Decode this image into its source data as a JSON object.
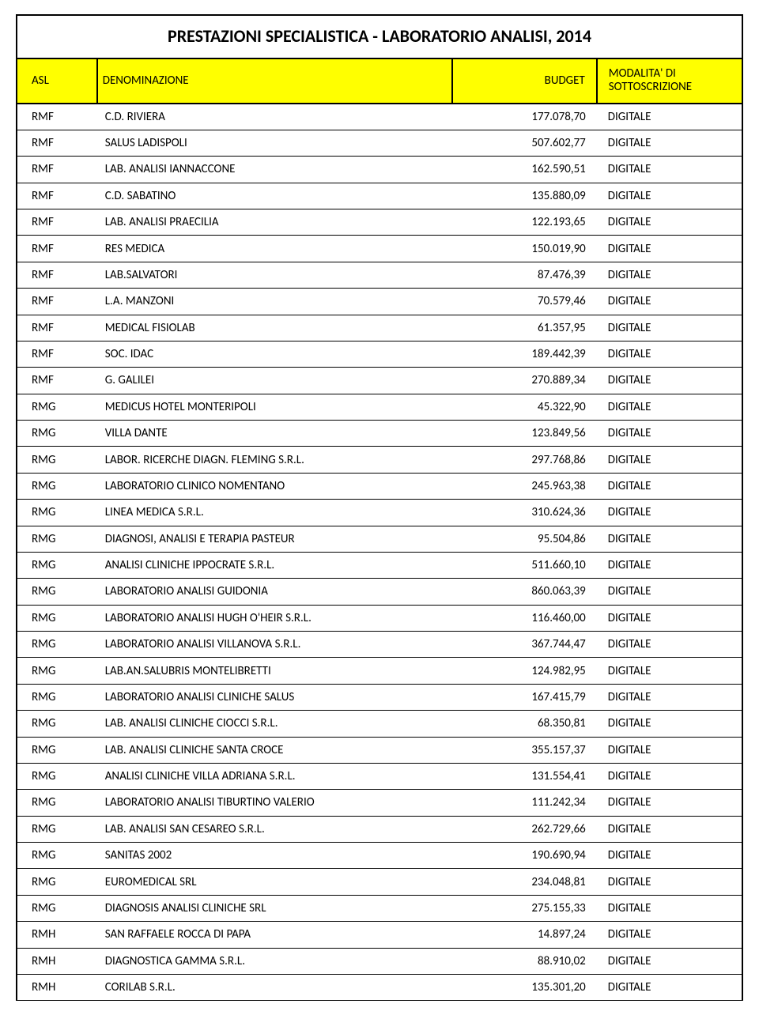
{
  "title": "PRESTAZIONI SPECIALISTICA - LABORATORIO ANALISI, 2014",
  "colors": {
    "header_bg": "#ffff00",
    "border": "#000000",
    "text": "#000000",
    "page_bg": "#ffffff"
  },
  "table": {
    "columns": [
      {
        "key": "asl",
        "label": "ASL",
        "align": "left",
        "width_pct": 11
      },
      {
        "key": "denominazione",
        "label": "DENOMINAZIONE",
        "align": "left",
        "width_pct": 49
      },
      {
        "key": "budget",
        "label": "BUDGET",
        "align": "right",
        "width_pct": 20
      },
      {
        "key": "modalita",
        "label": "MODALITA' DI SOTTOSCRIZIONE",
        "align": "left",
        "width_pct": 20
      }
    ],
    "rows": [
      [
        "RMF",
        "C.D. RIVIERA",
        "177.078,70",
        "DIGITALE"
      ],
      [
        "RMF",
        "SALUS LADISPOLI",
        "507.602,77",
        "DIGITALE"
      ],
      [
        "RMF",
        "LAB. ANALISI  IANNACCONE",
        "162.590,51",
        "DIGITALE"
      ],
      [
        "RMF",
        "C.D. SABATINO",
        "135.880,09",
        "DIGITALE"
      ],
      [
        "RMF",
        "LAB. ANALISI PRAECILIA",
        "122.193,65",
        "DIGITALE"
      ],
      [
        "RMF",
        "RES MEDICA",
        "150.019,90",
        "DIGITALE"
      ],
      [
        "RMF",
        "LAB.SALVATORI",
        "87.476,39",
        "DIGITALE"
      ],
      [
        "RMF",
        "L.A. MANZONI",
        "70.579,46",
        "DIGITALE"
      ],
      [
        "RMF",
        "MEDICAL FISIOLAB",
        "61.357,95",
        "DIGITALE"
      ],
      [
        "RMF",
        "SOC. IDAC",
        "189.442,39",
        "DIGITALE"
      ],
      [
        "RMF",
        "G. GALILEI",
        "270.889,34",
        "DIGITALE"
      ],
      [
        "RMG",
        "MEDICUS HOTEL MONTERIPOLI",
        "45.322,90",
        "DIGITALE"
      ],
      [
        "RMG",
        "VILLA DANTE",
        "123.849,56",
        "DIGITALE"
      ],
      [
        "RMG",
        "LABOR. RICERCHE DIAGN. FLEMING S.R.L.",
        "297.768,86",
        "DIGITALE"
      ],
      [
        "RMG",
        "LABORATORIO CLINICO NOMENTANO",
        "245.963,38",
        "DIGITALE"
      ],
      [
        "RMG",
        "LINEA MEDICA S.R.L.",
        "310.624,36",
        "DIGITALE"
      ],
      [
        "RMG",
        "DIAGNOSI, ANALISI E TERAPIA PASTEUR",
        "95.504,86",
        "DIGITALE"
      ],
      [
        "RMG",
        "ANALISI CLINICHE IPPOCRATE S.R.L.",
        "511.660,10",
        "DIGITALE"
      ],
      [
        "RMG",
        "LABORATORIO ANALISI GUIDONIA",
        "860.063,39",
        "DIGITALE"
      ],
      [
        "RMG",
        "LABORATORIO ANALISI HUGH O'HEIR S.R.L.",
        "116.460,00",
        "DIGITALE"
      ],
      [
        "RMG",
        "LABORATORIO ANALISI VILLANOVA S.R.L.",
        "367.744,47",
        "DIGITALE"
      ],
      [
        "RMG",
        "LAB.AN.SALUBRIS MONTELIBRETTI",
        "124.982,95",
        "DIGITALE"
      ],
      [
        "RMG",
        "LABORATORIO ANALISI CLINICHE SALUS",
        "167.415,79",
        "DIGITALE"
      ],
      [
        "RMG",
        "LAB. ANALISI CLINICHE CIOCCI S.R.L.",
        "68.350,81",
        "DIGITALE"
      ],
      [
        "RMG",
        "LAB. ANALISI CLINICHE SANTA CROCE",
        "355.157,37",
        "DIGITALE"
      ],
      [
        "RMG",
        "ANALISI CLINICHE VILLA ADRIANA S.R.L.",
        "131.554,41",
        "DIGITALE"
      ],
      [
        "RMG",
        "LABORATORIO ANALISI TIBURTINO VALERIO",
        "111.242,34",
        "DIGITALE"
      ],
      [
        "RMG",
        "LAB. ANALISI SAN CESAREO S.R.L.",
        "262.729,66",
        "DIGITALE"
      ],
      [
        "RMG",
        "SANITAS 2002",
        "190.690,94",
        "DIGITALE"
      ],
      [
        "RMG",
        "EUROMEDICAL SRL",
        "234.048,81",
        "DIGITALE"
      ],
      [
        "RMG",
        "DIAGNOSIS ANALISI  CLINICHE SRL",
        "275.155,33",
        "DIGITALE"
      ],
      [
        "RMH",
        "SAN RAFFAELE ROCCA DI PAPA",
        "14.897,24",
        "DIGITALE"
      ],
      [
        "RMH",
        "DIAGNOSTICA GAMMA   S.R.L.",
        "88.910,02",
        "DIGITALE"
      ],
      [
        "RMH",
        "CORILAB S.R.L.",
        "135.301,20",
        "DIGITALE"
      ]
    ]
  }
}
